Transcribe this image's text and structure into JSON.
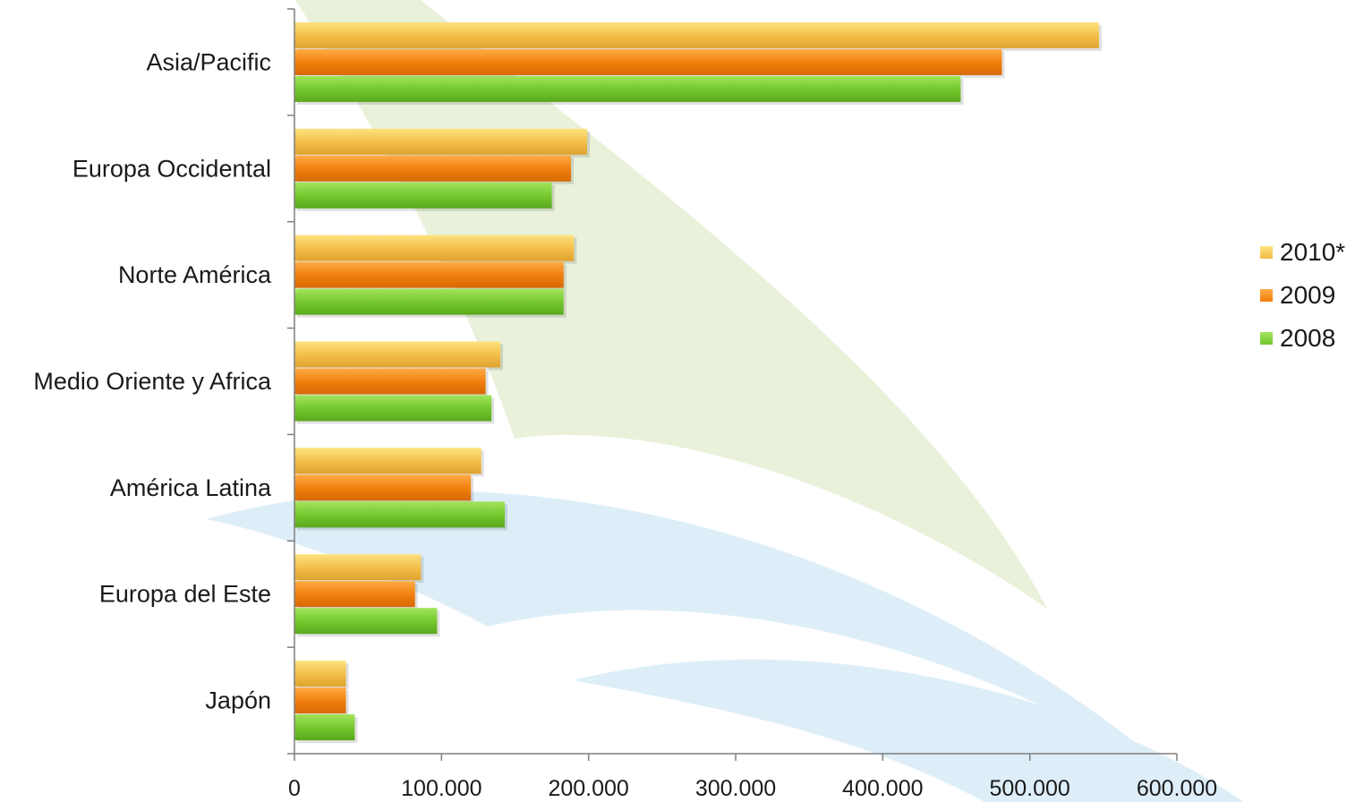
{
  "chart_data": {
    "type": "bar",
    "orientation": "horizontal",
    "categories": [
      "Asia/Pacific",
      "Europa Occidental",
      "Norte América",
      "Medio Oriente y Africa",
      "América Latina",
      "Europa del Este",
      "Japón"
    ],
    "series": [
      {
        "name": "2010*",
        "color": "#f3bc46",
        "values": [
          547000,
          199000,
          190000,
          140000,
          127000,
          86000,
          35000
        ]
      },
      {
        "name": "2009",
        "color": "#f07d0c",
        "values": [
          481000,
          188000,
          183000,
          130000,
          120000,
          82000,
          35000
        ]
      },
      {
        "name": "2008",
        "color": "#72c62c",
        "values": [
          453000,
          175000,
          183000,
          134000,
          143000,
          97000,
          41000
        ]
      }
    ],
    "x_ticks": [
      "0",
      "100.000",
      "200.000",
      "300.000",
      "400.000",
      "500.000",
      "600.000"
    ],
    "xlim": [
      0,
      600000
    ],
    "grid": false,
    "legend_position": "right"
  }
}
